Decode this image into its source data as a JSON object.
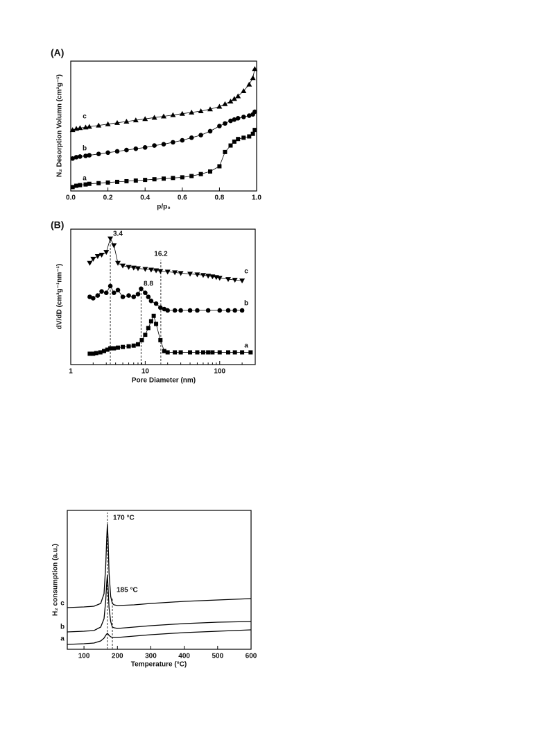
{
  "chart_data": [
    {
      "type": "line",
      "panel_label": "(A)",
      "ylabel": "N₂ Desorption Volumn (cm³g⁻¹)",
      "xlabel": "p/p₀",
      "xlim": [
        0,
        1
      ],
      "ylim": [
        0,
        100
      ],
      "xticks": [
        {
          "value": 0,
          "label": "0.0"
        },
        {
          "value": 0.2,
          "label": "0.2"
        },
        {
          "value": 0.4,
          "label": "0.4"
        },
        {
          "value": 0.6,
          "label": "0.6"
        },
        {
          "value": 0.8,
          "label": "0.8"
        },
        {
          "value": 1,
          "label": "1.0"
        }
      ],
      "series": [
        {
          "name": "a",
          "color": "#000000",
          "marker": "square",
          "x": [
            0.01,
            0.03,
            0.05,
            0.08,
            0.1,
            0.15,
            0.2,
            0.25,
            0.3,
            0.35,
            0.4,
            0.45,
            0.5,
            0.55,
            0.6,
            0.65,
            0.7,
            0.75,
            0.8,
            0.83,
            0.86,
            0.88,
            0.9,
            0.93,
            0.96,
            0.98,
            0.99
          ],
          "values": [
            3,
            4,
            4.5,
            5,
            5.5,
            6,
            6.5,
            7,
            7.5,
            8,
            8.5,
            9,
            9.5,
            10,
            10.5,
            11.5,
            13,
            15,
            19,
            30,
            35,
            38,
            40,
            41,
            42,
            44,
            47
          ]
        },
        {
          "name": "b",
          "color": "#000000",
          "marker": "circle",
          "x": [
            0.01,
            0.03,
            0.05,
            0.08,
            0.1,
            0.15,
            0.2,
            0.25,
            0.3,
            0.35,
            0.4,
            0.45,
            0.5,
            0.55,
            0.6,
            0.65,
            0.7,
            0.75,
            0.8,
            0.83,
            0.86,
            0.88,
            0.9,
            0.93,
            0.96,
            0.98,
            0.99
          ],
          "values": [
            25,
            26,
            26.5,
            27,
            27.5,
            28.5,
            29.5,
            30.5,
            31.5,
            32.5,
            33.5,
            35,
            36,
            37.5,
            39,
            41,
            43,
            46,
            50,
            52,
            54,
            55,
            56,
            57,
            58,
            59,
            61
          ]
        },
        {
          "name": "c",
          "color": "#000000",
          "marker": "triangle",
          "x": [
            0.01,
            0.03,
            0.05,
            0.08,
            0.1,
            0.15,
            0.2,
            0.25,
            0.3,
            0.35,
            0.4,
            0.45,
            0.5,
            0.55,
            0.6,
            0.65,
            0.7,
            0.75,
            0.8,
            0.83,
            0.86,
            0.88,
            0.9,
            0.93,
            0.96,
            0.98,
            0.99
          ],
          "values": [
            47,
            48,
            48.5,
            49,
            49.5,
            50.5,
            51.5,
            52.5,
            53.5,
            54.5,
            55.5,
            56.5,
            57.5,
            58.5,
            59.5,
            60.5,
            61.5,
            63,
            65,
            67,
            69,
            71,
            73,
            77,
            82,
            87,
            94
          ]
        }
      ]
    },
    {
      "type": "line",
      "panel_label": "(B)",
      "ylabel": "dV/dD (cm³g⁻¹nm⁻¹)",
      "xlabel": "Pore Diameter (nm)",
      "xscale": "log",
      "xlim": [
        1,
        300
      ],
      "ylim": [
        0,
        100
      ],
      "xticks": [
        1,
        10,
        100
      ],
      "annotations": [
        3.4,
        16.2,
        8.8
      ],
      "series": [
        {
          "name": "a",
          "color": "#000000",
          "marker": "square",
          "x": [
            1.8,
            2,
            2.2,
            2.5,
            2.8,
            3.1,
            3.4,
            3.8,
            4.3,
            5,
            6,
            7,
            8,
            9,
            10,
            11,
            12,
            13,
            14,
            16,
            18,
            20,
            25,
            30,
            40,
            50,
            60,
            70,
            80,
            100,
            130,
            160,
            200,
            260
          ],
          "values": [
            8,
            8,
            8.5,
            9,
            10,
            11,
            12,
            12,
            12.5,
            13,
            13.5,
            14,
            15,
            18,
            22,
            27,
            32,
            36,
            30,
            18,
            10,
            9,
            9,
            9,
            9,
            9,
            9,
            9,
            9,
            9,
            9,
            9,
            9,
            9
          ]
        },
        {
          "name": "b",
          "color": "#000000",
          "marker": "circle",
          "x": [
            1.8,
            2,
            2.3,
            2.6,
            3,
            3.4,
            3.8,
            4.3,
            5,
            6,
            7,
            8,
            8.8,
            10,
            11,
            12,
            14,
            16,
            18,
            20,
            25,
            30,
            40,
            50,
            70,
            100,
            130,
            160,
            200
          ],
          "values": [
            50,
            49,
            51,
            54,
            53,
            58,
            53,
            55,
            50,
            51,
            50,
            52,
            56,
            53,
            50,
            47,
            45,
            42,
            41,
            40,
            40,
            40,
            40,
            40,
            40,
            40,
            40,
            40,
            40
          ]
        },
        {
          "name": "c",
          "color": "#000000",
          "marker": "triangle-down",
          "x": [
            1.8,
            2,
            2.3,
            2.6,
            3,
            3.4,
            3.8,
            4.3,
            5,
            6,
            7,
            8,
            10,
            12,
            14,
            16,
            20,
            25,
            30,
            40,
            50,
            60,
            70,
            80,
            90,
            100,
            130,
            160,
            200
          ],
          "values": [
            75,
            78,
            80,
            81,
            83,
            93,
            88,
            75,
            73,
            72,
            71.5,
            71,
            70.5,
            70,
            69.5,
            69,
            68.5,
            68,
            67.5,
            67,
            66.5,
            66,
            65.5,
            65,
            64.5,
            64,
            63,
            62.5,
            62
          ]
        }
      ]
    },
    {
      "type": "line",
      "ylabel": "H₂ consumption (a.u.)",
      "xlabel": "Temperature (°C)",
      "xlim": [
        50,
        600
      ],
      "ylim": [
        0,
        100
      ],
      "xticks": [
        100,
        200,
        300,
        400,
        500,
        600
      ],
      "annotations": [
        {
          "value": 170,
          "label": "170 °C"
        },
        {
          "value": 185,
          "label": "185 °C"
        }
      ],
      "series": [
        {
          "name": "a",
          "color": "#000000",
          "x": [
            50,
            100,
            130,
            150,
            160,
            165,
            168,
            170,
            172,
            175,
            180,
            185,
            190,
            200,
            250,
            300,
            400,
            500,
            600
          ],
          "values": [
            3.5,
            4,
            4.5,
            6,
            8,
            10,
            11,
            11.5,
            11,
            10,
            9,
            8.5,
            8.5,
            8.5,
            9.5,
            10.5,
            12,
            13,
            14
          ]
        },
        {
          "name": "b",
          "color": "#000000",
          "x": [
            50,
            100,
            130,
            150,
            160,
            165,
            168,
            170,
            172,
            175,
            180,
            185,
            190,
            200,
            250,
            300,
            400,
            500,
            600
          ],
          "values": [
            12.5,
            13,
            13.5,
            16,
            22,
            35,
            48,
            53.5,
            45,
            30,
            20,
            16,
            15.5,
            15,
            16,
            17,
            18.5,
            19.5,
            20
          ]
        },
        {
          "name": "c",
          "color": "#000000",
          "x": [
            50,
            100,
            130,
            150,
            160,
            165,
            168,
            170,
            172,
            175,
            180,
            185,
            190,
            200,
            250,
            300,
            400,
            500,
            600
          ],
          "values": [
            30,
            30.5,
            31,
            33,
            40,
            60,
            80,
            90,
            80,
            55,
            38,
            33,
            32,
            31.5,
            32,
            33,
            34.5,
            35.5,
            36.5
          ]
        }
      ]
    }
  ]
}
